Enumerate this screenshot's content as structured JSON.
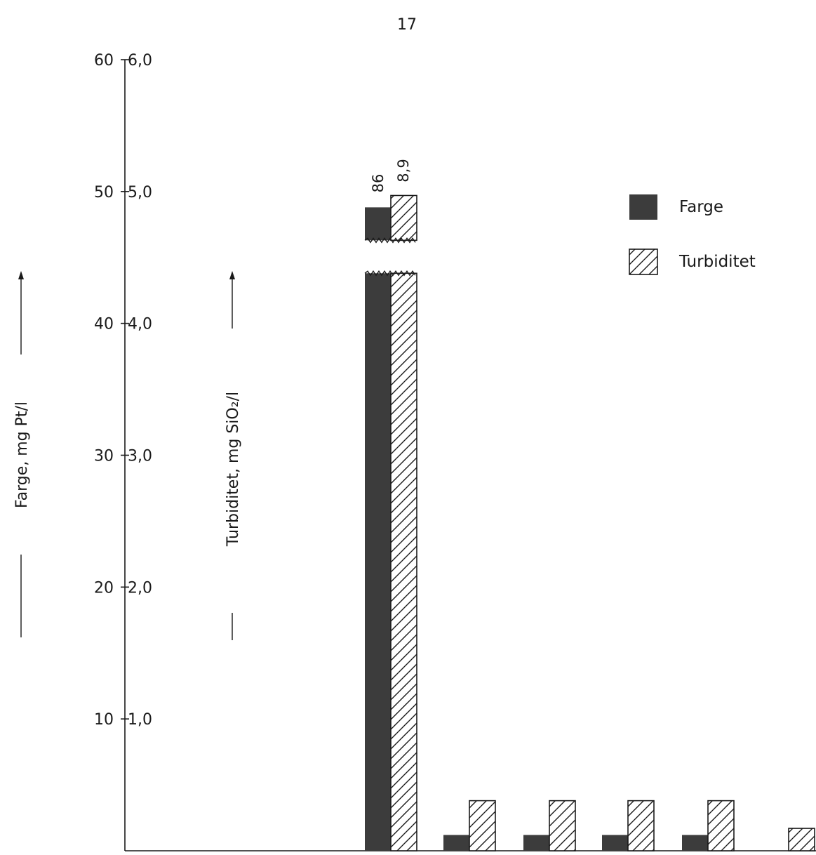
{
  "page_number": "17",
  "colors": {
    "farge": "#3c3c3c",
    "turbiditet_fill": "#ffffff",
    "ink": "#1a1a1a"
  },
  "chart_data": {
    "type": "bar",
    "page_number": "17",
    "left_axis": {
      "label": "Farge, mg Pt/l",
      "ticks": [
        "10",
        "20",
        "30",
        "40",
        "50",
        "60"
      ],
      "range": [
        0,
        60
      ]
    },
    "right_axis": {
      "label": "Turbiditet, mg SiO₂/l",
      "ticks": [
        "1,0",
        "2,0",
        "3,0",
        "4,0",
        "5,0",
        "6,0"
      ],
      "range": [
        0,
        6
      ]
    },
    "groups": 6,
    "series": [
      {
        "name": "Farge",
        "axis": "left",
        "pattern": "solid",
        "values": [
          null,
          86,
          1.2,
          1.2,
          1.2,
          1.2
        ]
      },
      {
        "name": "Turbiditet",
        "axis": "right",
        "pattern": "hatch",
        "values": [
          null,
          8.9,
          0.2,
          0.2,
          0.2,
          0.2
        ]
      }
    ],
    "bar_labels": [
      "86",
      "8,9"
    ],
    "axis_breaks": true,
    "legend": {
      "position": "top-right",
      "entries": [
        "Farge",
        "Turbiditet"
      ]
    }
  }
}
